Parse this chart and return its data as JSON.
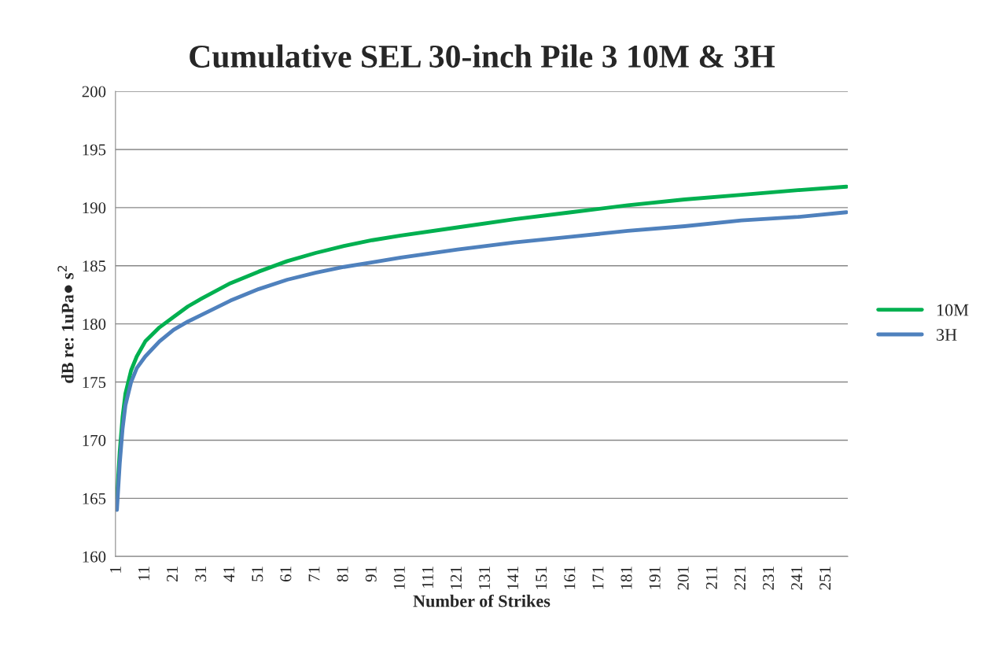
{
  "chart_data": {
    "type": "line",
    "title": "Cumulative SEL 30-inch Pile 3 10M & 3H",
    "xlabel": "Number of Strikes",
    "ylabel": "dB re: 1uPa● s$^{2}$",
    "x": [
      1,
      2,
      3,
      4,
      6,
      8,
      11,
      16,
      21,
      26,
      31,
      41,
      51,
      61,
      71,
      81,
      91,
      101,
      121,
      141,
      161,
      181,
      201,
      221,
      241,
      258
    ],
    "series": [
      {
        "name": "10M",
        "color": "#00b050",
        "values": [
          165,
          169,
          172,
          174,
          176,
          177.2,
          178.5,
          179.7,
          180.6,
          181.5,
          182.2,
          183.5,
          184.5,
          185.4,
          186.1,
          186.7,
          187.2,
          187.6,
          188.3,
          189,
          189.6,
          190.2,
          190.7,
          191.1,
          191.5,
          191.8
        ]
      },
      {
        "name": "3H",
        "color": "#4f81bd",
        "values": [
          164,
          168,
          171,
          173,
          175,
          176.2,
          177.2,
          178.5,
          179.5,
          180.2,
          180.8,
          182,
          183,
          183.8,
          184.4,
          184.9,
          185.3,
          185.7,
          186.4,
          187,
          187.5,
          188,
          188.4,
          188.9,
          189.2,
          189.6
        ]
      }
    ],
    "xlim": [
      0.5,
      258.5
    ],
    "xticks": [
      1,
      11,
      21,
      31,
      41,
      51,
      61,
      71,
      81,
      91,
      101,
      111,
      121,
      131,
      141,
      151,
      161,
      171,
      181,
      191,
      201,
      211,
      221,
      231,
      241,
      251
    ],
    "ylim": [
      160,
      200
    ],
    "yticks": [
      160,
      165,
      170,
      175,
      180,
      185,
      190,
      195,
      200
    ],
    "grid": "y",
    "legend": "right",
    "marker": "none",
    "line_style": "solid"
  }
}
